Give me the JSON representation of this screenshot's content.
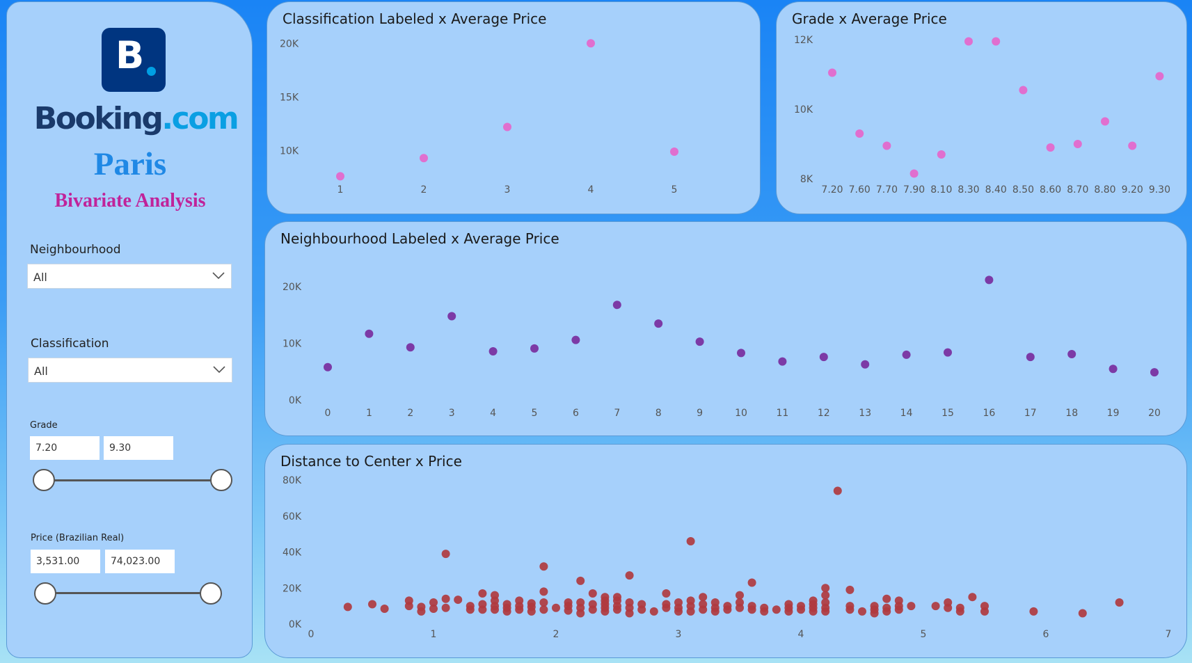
{
  "sidebar": {
    "brand_main": "Booking",
    "brand_tld": ".com",
    "city": "Paris",
    "subtitle": "Bivariate Analysis",
    "neighbourhood": {
      "label": "Neighbourhood",
      "value": "All"
    },
    "classification": {
      "label": "Classification",
      "value": "All"
    },
    "grade": {
      "label": "Grade",
      "min": "7.20",
      "max": "9.30"
    },
    "price": {
      "label": "Price (Brazilian Real)",
      "min": "3,531.00",
      "max": "74,023.00"
    }
  },
  "colors": {
    "pink": "#e06fcf",
    "purple": "#7c3aa6",
    "red": "#b0393f",
    "brand_dark": "#003580",
    "brand_light": "#009fe3"
  },
  "chart_data": [
    {
      "id": "classification",
      "type": "scatter",
      "title": "Classification Labeled x Average Price",
      "x": [
        1,
        2,
        3,
        4,
        5
      ],
      "y": [
        7600,
        9300,
        12200,
        20000,
        9900
      ],
      "xlim": [
        0.5,
        5.5
      ],
      "ylim": [
        6200,
        20600
      ],
      "yticks": [
        10000,
        15000,
        20000
      ],
      "ytick_labels": [
        "10K",
        "15K",
        "20K"
      ],
      "xtick_labels": [
        "1",
        "2",
        "3",
        "4",
        "5"
      ]
    },
    {
      "id": "grade",
      "type": "scatter",
      "title": "Grade x Average Price",
      "categories": [
        "7.20",
        "7.60",
        "7.70",
        "7.90",
        "8.10",
        "8.30",
        "8.40",
        "8.50",
        "8.60",
        "8.70",
        "8.80",
        "9.20",
        "9.30"
      ],
      "y": [
        11050,
        9300,
        8950,
        8150,
        8700,
        11950,
        11950,
        10550,
        8900,
        9000,
        9650,
        8950,
        10950
      ],
      "ylim": [
        8000,
        12000
      ],
      "yticks": [
        8000,
        10000,
        12000
      ],
      "ytick_labels": [
        "8K",
        "10K",
        "12K"
      ]
    },
    {
      "id": "neighbourhood",
      "type": "scatter",
      "title": "Neighbourhood Labeled x Average Price",
      "x": [
        0,
        1,
        2,
        3,
        4,
        5,
        6,
        7,
        8,
        9,
        10,
        11,
        12,
        13,
        14,
        15,
        16,
        17,
        18,
        19,
        20
      ],
      "y": [
        5800,
        11700,
        9300,
        14800,
        8600,
        9100,
        10600,
        16800,
        13500,
        10300,
        8300,
        6800,
        7600,
        6300,
        8000,
        8400,
        21200,
        7600,
        8100,
        5500,
        4900
      ],
      "ylim": [
        0,
        21000
      ],
      "yticks": [
        0,
        10000,
        20000
      ],
      "ytick_labels": [
        "0K",
        "10K",
        "20K"
      ],
      "xtick_labels": [
        "0",
        "1",
        "2",
        "3",
        "4",
        "5",
        "6",
        "7",
        "8",
        "9",
        "10",
        "11",
        "12",
        "13",
        "14",
        "15",
        "16",
        "17",
        "18",
        "19",
        "20"
      ]
    },
    {
      "id": "distance",
      "type": "scatter",
      "title": "Distance to Center x Price",
      "xlim": [
        0,
        7
      ],
      "ylim": [
        0,
        80000
      ],
      "yticks": [
        0,
        20000,
        40000,
        60000,
        80000
      ],
      "ytick_labels": [
        "0K",
        "20K",
        "40K",
        "60K",
        "80K"
      ],
      "xticks": [
        0,
        1,
        2,
        3,
        4,
        5,
        6,
        7
      ],
      "xtick_labels": [
        "0",
        "1",
        "2",
        "3",
        "4",
        "5",
        "6",
        "7"
      ],
      "points": [
        [
          0.3,
          9500
        ],
        [
          0.5,
          11000
        ],
        [
          0.6,
          8500
        ],
        [
          0.8,
          10000
        ],
        [
          0.8,
          13000
        ],
        [
          0.9,
          7000
        ],
        [
          0.9,
          9500
        ],
        [
          1.0,
          8500
        ],
        [
          1.0,
          12000
        ],
        [
          1.1,
          39000
        ],
        [
          1.1,
          9000
        ],
        [
          1.1,
          14000
        ],
        [
          1.2,
          13500
        ],
        [
          1.3,
          8000
        ],
        [
          1.3,
          10000
        ],
        [
          1.4,
          8000
        ],
        [
          1.4,
          11000
        ],
        [
          1.4,
          17000
        ],
        [
          1.5,
          8000
        ],
        [
          1.5,
          10000
        ],
        [
          1.5,
          13000
        ],
        [
          1.5,
          16000
        ],
        [
          1.6,
          7000
        ],
        [
          1.6,
          9000
        ],
        [
          1.6,
          11000
        ],
        [
          1.7,
          8000
        ],
        [
          1.7,
          10000
        ],
        [
          1.7,
          13000
        ],
        [
          1.8,
          7000
        ],
        [
          1.8,
          9500
        ],
        [
          1.8,
          11500
        ],
        [
          1.9,
          32000
        ],
        [
          1.9,
          18000
        ],
        [
          1.9,
          12000
        ],
        [
          1.9,
          8000
        ],
        [
          2.0,
          9000
        ],
        [
          2.1,
          7500
        ],
        [
          2.1,
          10000
        ],
        [
          2.1,
          12000
        ],
        [
          2.2,
          24000
        ],
        [
          2.2,
          6000
        ],
        [
          2.2,
          9000
        ],
        [
          2.2,
          12000
        ],
        [
          2.3,
          17000
        ],
        [
          2.3,
          8000
        ],
        [
          2.3,
          11000
        ],
        [
          2.4,
          7000
        ],
        [
          2.4,
          9000
        ],
        [
          2.4,
          11000
        ],
        [
          2.4,
          13000
        ],
        [
          2.4,
          15000
        ],
        [
          2.5,
          8000
        ],
        [
          2.5,
          10000
        ],
        [
          2.5,
          13000
        ],
        [
          2.5,
          15000
        ],
        [
          2.6,
          27000
        ],
        [
          2.6,
          6000
        ],
        [
          2.6,
          9000
        ],
        [
          2.6,
          12000
        ],
        [
          2.7,
          8000
        ],
        [
          2.7,
          11000
        ],
        [
          2.8,
          7000
        ],
        [
          2.9,
          17000
        ],
        [
          2.9,
          9000
        ],
        [
          2.9,
          11000
        ],
        [
          3.0,
          7000
        ],
        [
          3.0,
          9000
        ],
        [
          3.0,
          12000
        ],
        [
          3.1,
          46000
        ],
        [
          3.1,
          7000
        ],
        [
          3.1,
          10000
        ],
        [
          3.1,
          13000
        ],
        [
          3.2,
          8000
        ],
        [
          3.2,
          11000
        ],
        [
          3.2,
          15000
        ],
        [
          3.3,
          7000
        ],
        [
          3.3,
          9000
        ],
        [
          3.3,
          12000
        ],
        [
          3.4,
          8000
        ],
        [
          3.4,
          10000
        ],
        [
          3.5,
          16000
        ],
        [
          3.5,
          9000
        ],
        [
          3.5,
          12000
        ],
        [
          3.6,
          23000
        ],
        [
          3.6,
          8000
        ],
        [
          3.6,
          10000
        ],
        [
          3.7,
          7000
        ],
        [
          3.7,
          9000
        ],
        [
          3.8,
          8000
        ],
        [
          3.9,
          7000
        ],
        [
          3.9,
          9000
        ],
        [
          3.9,
          11000
        ],
        [
          4.0,
          8000
        ],
        [
          4.0,
          10000
        ],
        [
          4.1,
          7000
        ],
        [
          4.1,
          9000
        ],
        [
          4.1,
          11000
        ],
        [
          4.1,
          13000
        ],
        [
          4.2,
          20000
        ],
        [
          4.2,
          16000
        ],
        [
          4.2,
          12000
        ],
        [
          4.2,
          9000
        ],
        [
          4.2,
          7000
        ],
        [
          4.3,
          74000
        ],
        [
          4.4,
          19000
        ],
        [
          4.4,
          8000
        ],
        [
          4.4,
          10000
        ],
        [
          4.5,
          7000
        ],
        [
          4.6,
          6000
        ],
        [
          4.6,
          8000
        ],
        [
          4.6,
          10000
        ],
        [
          4.7,
          7000
        ],
        [
          4.7,
          9000
        ],
        [
          4.7,
          14000
        ],
        [
          4.8,
          8000
        ],
        [
          4.8,
          10000
        ],
        [
          4.8,
          13000
        ],
        [
          4.9,
          10000
        ],
        [
          5.1,
          10000
        ],
        [
          5.2,
          9000
        ],
        [
          5.2,
          12000
        ],
        [
          5.3,
          7000
        ],
        [
          5.3,
          9000
        ],
        [
          5.4,
          15000
        ],
        [
          5.5,
          7000
        ],
        [
          5.5,
          10000
        ],
        [
          5.9,
          7000
        ],
        [
          6.3,
          6000
        ],
        [
          6.6,
          12000
        ]
      ]
    }
  ]
}
